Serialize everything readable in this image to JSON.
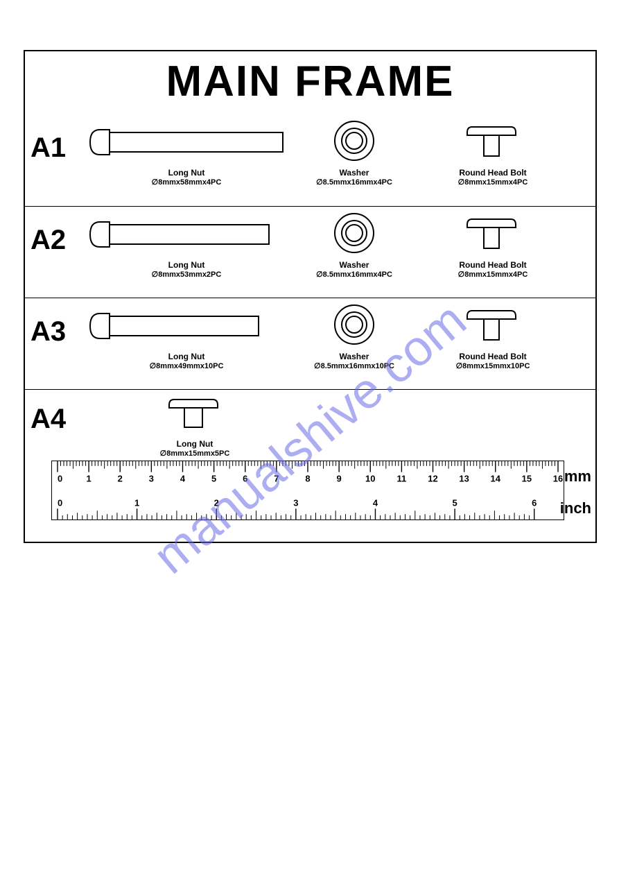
{
  "title": "MAIN FRAME",
  "rows": [
    {
      "label": "A1",
      "longnut": {
        "name": "Long Nut",
        "spec": "∅8mmx58mmx4PC",
        "length": 250
      },
      "washer": {
        "name": "Washer",
        "spec": "∅8.5mmx16mmx4PC"
      },
      "bolt": {
        "name": "Round Head Bolt",
        "spec": "∅8mmx15mmx4PC"
      }
    },
    {
      "label": "A2",
      "longnut": {
        "name": "Long Nut",
        "spec": "∅8mmx53mmx2PC",
        "length": 230
      },
      "washer": {
        "name": "Washer",
        "spec": "∅8.5mmx16mmx4PC"
      },
      "bolt": {
        "name": "Round Head Bolt",
        "spec": "∅8mmx15mmx4PC"
      }
    },
    {
      "label": "A3",
      "longnut": {
        "name": "Long Nut",
        "spec": "∅8mmx49mmx10PC",
        "length": 215
      },
      "washer": {
        "name": "Washer",
        "spec": "∅8.5mmx16mmx10PC"
      },
      "bolt": {
        "name": "Round Head Bolt",
        "spec": "∅8mmx15mmx10PC"
      }
    },
    {
      "label": "A4",
      "shortnut": {
        "name": "Long Nut",
        "spec": "∅8mmx15mmx5PC"
      }
    }
  ],
  "ruler": {
    "mm_label": "mm",
    "inch_label": "inch",
    "mm_max": 16,
    "inch_max": 6
  },
  "watermark": "manualshive.com",
  "colors": {
    "stroke": "#000000",
    "bg": "#ffffff",
    "watermark": "#6b6be8"
  }
}
